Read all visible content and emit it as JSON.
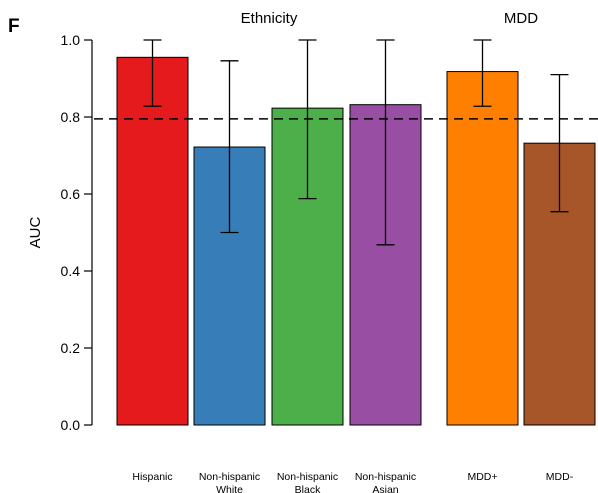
{
  "chart_data": {
    "type": "bar",
    "panel_label": "F",
    "groups": [
      {
        "label": "Ethnicity",
        "categories": [
          0,
          1,
          2,
          3
        ]
      },
      {
        "label": "MDD",
        "categories": [
          4,
          5
        ]
      }
    ],
    "categories": [
      [
        "Hispanic"
      ],
      [
        "Non-hispanic",
        "White"
      ],
      [
        "Non-hispanic",
        "Black"
      ],
      [
        "Non-hispanic",
        "Asian"
      ],
      [
        "MDD+"
      ],
      [
        "MDD-"
      ]
    ],
    "values": [
      0.955,
      0.722,
      0.823,
      0.832,
      0.918,
      0.732
    ],
    "error_low": [
      0.828,
      0.5,
      0.588,
      0.468,
      0.828,
      0.554
    ],
    "error_high": [
      1.0,
      0.946,
      1.0,
      1.0,
      1.0,
      0.91
    ],
    "colors": [
      "#E41A1C",
      "#377EB8",
      "#4DAF4A",
      "#984EA3",
      "#FF7F00",
      "#A65628"
    ],
    "reference_line": 0.795,
    "ylabel": "AUC",
    "xlabel": "",
    "ylim": [
      0,
      1
    ],
    "yticks": [
      "0.0",
      "0.2",
      "0.4",
      "0.6",
      "0.8",
      "1.0"
    ],
    "grid": false,
    "legend": "none"
  }
}
